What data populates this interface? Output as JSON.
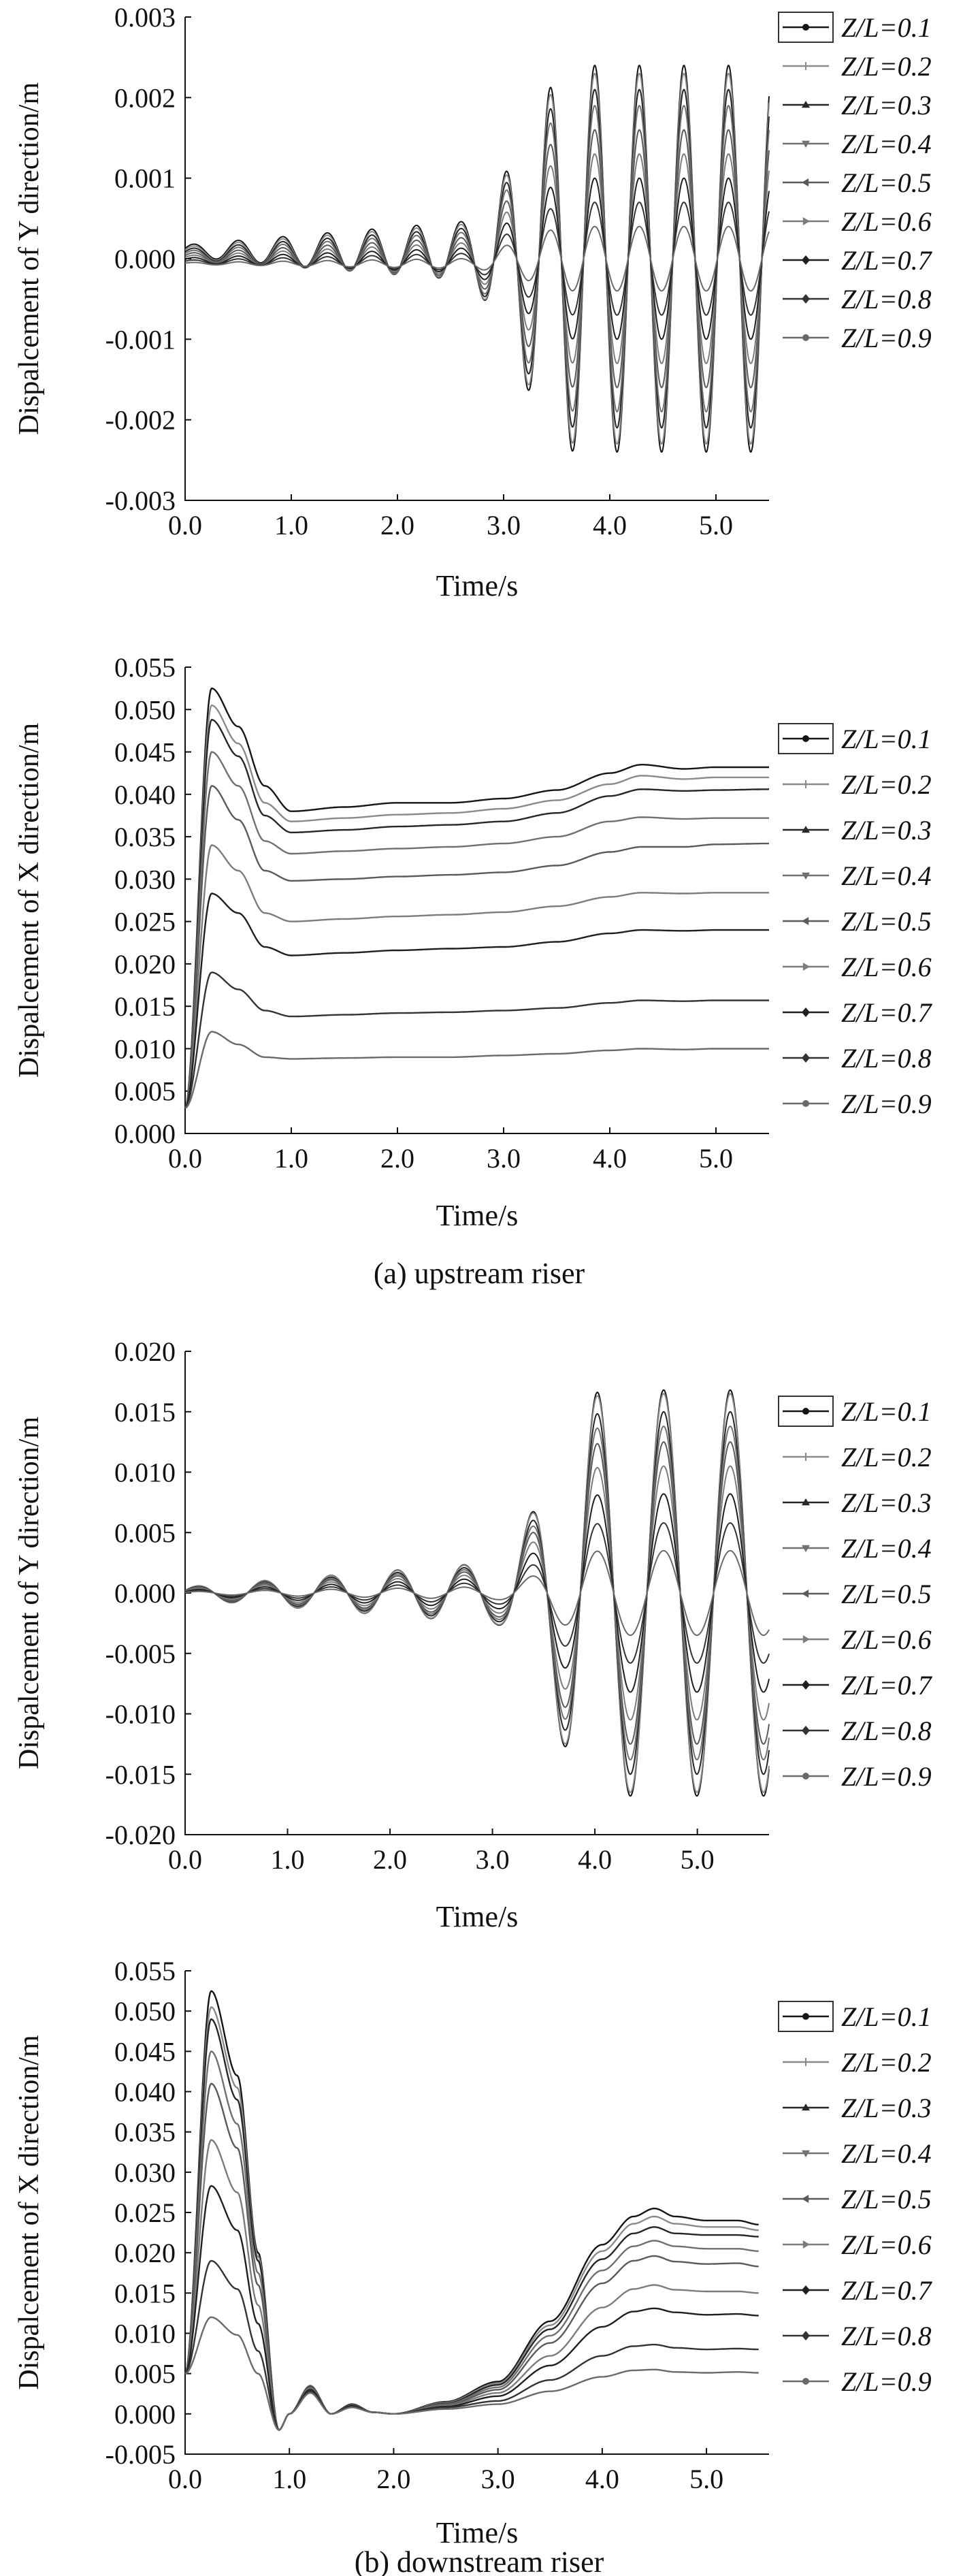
{
  "figure": {
    "caption_a": "(a) upstream riser",
    "caption_b": "(b) downstream riser"
  },
  "legend_labels": [
    "Z/L=0.1",
    "Z/L=0.2",
    "Z/L=0.3",
    "Z/L=0.4",
    "Z/L=0.5",
    "Z/L=0.6",
    "Z/L=0.7",
    "Z/L=0.8",
    "Z/L=0.9"
  ],
  "chart_data": [
    {
      "type": "line",
      "panel": "upstream riser",
      "xlabel": "Time/s",
      "ylabel": "Dispalcement of Y direction/m",
      "xlim": [
        0,
        5.5
      ],
      "ylim": [
        -0.003,
        0.003
      ],
      "xticks": [
        "0.0",
        "1.0",
        "2.0",
        "3.0",
        "4.0",
        "5.0"
      ],
      "yticks": [
        "0.003",
        "0.002",
        "0.001",
        "0.000",
        "-0.001",
        "-0.002",
        "-0.003"
      ],
      "legend_position": "right",
      "signal": "oscillation",
      "period_s": 0.42,
      "onset_s": 2.6,
      "bias": [
        0.0001,
        8e-05,
        6e-05,
        4e-05,
        2e-05,
        0.0,
        -2e-05,
        -4e-05,
        -6e-05
      ],
      "series": [
        {
          "name": "Z/L=0.1",
          "peak_amplitude": 0.0024
        },
        {
          "name": "Z/L=0.2",
          "peak_amplitude": 0.0023
        },
        {
          "name": "Z/L=0.3",
          "peak_amplitude": 0.0021
        },
        {
          "name": "Z/L=0.4",
          "peak_amplitude": 0.0019
        },
        {
          "name": "Z/L=0.5",
          "peak_amplitude": 0.0016
        },
        {
          "name": "Z/L=0.6",
          "peak_amplitude": 0.0013
        },
        {
          "name": "Z/L=0.7",
          "peak_amplitude": 0.001
        },
        {
          "name": "Z/L=0.8",
          "peak_amplitude": 0.0007
        },
        {
          "name": "Z/L=0.9",
          "peak_amplitude": 0.0004
        }
      ]
    },
    {
      "type": "line",
      "panel": "upstream riser",
      "xlabel": "Time/s",
      "ylabel": "Dispalcement of X direction/m",
      "xlim": [
        0,
        5.5
      ],
      "ylim": [
        0,
        0.055
      ],
      "xticks": [
        "0.0",
        "1.0",
        "2.0",
        "3.0",
        "4.0",
        "5.0"
      ],
      "yticks": [
        "0.055",
        "0.050",
        "0.045",
        "0.040",
        "0.035",
        "0.030",
        "0.025",
        "0.020",
        "0.015",
        "0.010",
        "0.005",
        "0.000"
      ],
      "legend_position": "right",
      "signal": "drag",
      "x": [
        0,
        0.25,
        0.5,
        0.75,
        1.0,
        1.5,
        2.0,
        2.5,
        3.0,
        3.5,
        4.0,
        4.3,
        4.7,
        5.0,
        5.5
      ],
      "series": [
        {
          "name": "Z/L=0.1",
          "y": [
            0.003,
            0.0525,
            0.048,
            0.041,
            0.038,
            0.0385,
            0.039,
            0.039,
            0.0395,
            0.0405,
            0.0425,
            0.0435,
            0.043,
            0.0432,
            0.0432
          ]
        },
        {
          "name": "Z/L=0.2",
          "y": [
            0.003,
            0.0505,
            0.046,
            0.039,
            0.0368,
            0.0372,
            0.0376,
            0.0378,
            0.0383,
            0.0393,
            0.0412,
            0.0422,
            0.0418,
            0.042,
            0.042
          ]
        },
        {
          "name": "Z/L=0.3",
          "y": [
            0.003,
            0.0488,
            0.0445,
            0.0375,
            0.0355,
            0.0358,
            0.0362,
            0.0364,
            0.0368,
            0.0378,
            0.0398,
            0.0406,
            0.0404,
            0.0405,
            0.0406
          ]
        },
        {
          "name": "Z/L=0.4",
          "y": [
            0.003,
            0.045,
            0.041,
            0.0345,
            0.033,
            0.0333,
            0.0336,
            0.0338,
            0.0342,
            0.035,
            0.0368,
            0.0373,
            0.0371,
            0.0372,
            0.0372
          ]
        },
        {
          "name": "Z/L=0.5",
          "y": [
            0.003,
            0.041,
            0.037,
            0.031,
            0.0298,
            0.03,
            0.0303,
            0.0305,
            0.0308,
            0.0316,
            0.0332,
            0.0338,
            0.0338,
            0.0341,
            0.0342
          ]
        },
        {
          "name": "Z/L=0.6",
          "y": [
            0.003,
            0.034,
            0.031,
            0.026,
            0.025,
            0.0253,
            0.0256,
            0.0258,
            0.0261,
            0.0268,
            0.0279,
            0.0284,
            0.0283,
            0.0284,
            0.0284
          ]
        },
        {
          "name": "Z/L=0.7",
          "y": [
            0.003,
            0.0283,
            0.026,
            0.022,
            0.021,
            0.0213,
            0.0216,
            0.0218,
            0.022,
            0.0226,
            0.0236,
            0.024,
            0.0239,
            0.024,
            0.024
          ]
        },
        {
          "name": "Z/L=0.8",
          "y": [
            0.003,
            0.019,
            0.017,
            0.0145,
            0.0138,
            0.014,
            0.0142,
            0.0143,
            0.0145,
            0.0148,
            0.0154,
            0.0157,
            0.0156,
            0.0157,
            0.0157
          ]
        },
        {
          "name": "Z/L=0.9",
          "y": [
            0.003,
            0.012,
            0.0105,
            0.009,
            0.0088,
            0.0089,
            0.009,
            0.009,
            0.0092,
            0.0094,
            0.0098,
            0.01,
            0.0099,
            0.01,
            0.01
          ]
        }
      ]
    },
    {
      "type": "line",
      "panel": "downstream riser",
      "xlabel": "Time/s",
      "ylabel": "Dispalcement of Y direction/m",
      "xlim": [
        0,
        5.7
      ],
      "ylim": [
        -0.02,
        0.02
      ],
      "xticks": [
        "0.0",
        "1.0",
        "2.0",
        "3.0",
        "4.0",
        "5.0"
      ],
      "yticks": [
        "0.020",
        "0.015",
        "0.010",
        "0.005",
        "0.000",
        "-0.005",
        "-0.010",
        "-0.015",
        "-0.020"
      ],
      "legend_position": "right",
      "signal": "oscillation",
      "period_s": 0.65,
      "onset_s": 3.0,
      "bias": [
        0,
        0,
        0,
        0,
        0,
        0,
        0,
        0,
        0
      ],
      "series": [
        {
          "name": "Z/L=0.1",
          "peak_amplitude": 0.0168
        },
        {
          "name": "Z/L=0.2",
          "peak_amplitude": 0.0165
        },
        {
          "name": "Z/L=0.3",
          "peak_amplitude": 0.015
        },
        {
          "name": "Z/L=0.4",
          "peak_amplitude": 0.0138
        },
        {
          "name": "Z/L=0.5",
          "peak_amplitude": 0.0125
        },
        {
          "name": "Z/L=0.6",
          "peak_amplitude": 0.0105
        },
        {
          "name": "Z/L=0.7",
          "peak_amplitude": 0.0082
        },
        {
          "name": "Z/L=0.8",
          "peak_amplitude": 0.0058
        },
        {
          "name": "Z/L=0.9",
          "peak_amplitude": 0.0035
        }
      ]
    },
    {
      "type": "line",
      "panel": "downstream riser",
      "xlabel": "Time/s",
      "ylabel": "Dispalcement of X direction/m",
      "xlim": [
        0,
        5.6
      ],
      "ylim": [
        -0.005,
        0.055
      ],
      "xticks": [
        "0.0",
        "1.0",
        "2.0",
        "3.0",
        "4.0",
        "5.0"
      ],
      "yticks": [
        "0.055",
        "0.050",
        "0.045",
        "0.040",
        "0.035",
        "0.030",
        "0.025",
        "0.020",
        "0.015",
        "0.010",
        "0.005",
        "0.000",
        "-0.005"
      ],
      "legend_position": "right",
      "signal": "drag",
      "x": [
        0,
        0.25,
        0.5,
        0.7,
        0.9,
        1.0,
        1.2,
        1.4,
        1.6,
        1.8,
        2.0,
        2.5,
        3.0,
        3.5,
        4.0,
        4.3,
        4.5,
        4.7,
        5.0,
        5.3,
        5.5
      ],
      "series": [
        {
          "name": "Z/L=0.1",
          "y": [
            0.005,
            0.0525,
            0.042,
            0.02,
            -0.002,
            0.0,
            0.0035,
            0.0,
            0.0012,
            0.0002,
            0.0,
            0.0015,
            0.004,
            0.0115,
            0.021,
            0.0245,
            0.0255,
            0.0245,
            0.024,
            0.024,
            0.0235
          ]
        },
        {
          "name": "Z/L=0.2",
          "y": [
            0.005,
            0.0505,
            0.0405,
            0.0195,
            -0.002,
            0.0,
            0.0035,
            0.0,
            0.0012,
            0.0002,
            0.0,
            0.0014,
            0.0038,
            0.011,
            0.0202,
            0.0236,
            0.0245,
            0.0236,
            0.0232,
            0.0232,
            0.0228
          ]
        },
        {
          "name": "Z/L=0.3",
          "y": [
            0.005,
            0.049,
            0.039,
            0.019,
            -0.002,
            0.0,
            0.0034,
            0.0,
            0.0012,
            0.0002,
            0.0,
            0.0013,
            0.0036,
            0.0105,
            0.0192,
            0.0224,
            0.0232,
            0.0224,
            0.0222,
            0.0222,
            0.022
          ]
        },
        {
          "name": "Z/L=0.4",
          "y": [
            0.005,
            0.045,
            0.036,
            0.0175,
            -0.002,
            0.0,
            0.0033,
            0.0,
            0.0011,
            0.0002,
            0.0,
            0.0012,
            0.0033,
            0.0097,
            0.0178,
            0.0208,
            0.0215,
            0.0208,
            0.0205,
            0.0205,
            0.0202
          ]
        },
        {
          "name": "Z/L=0.5",
          "y": [
            0.005,
            0.041,
            0.033,
            0.016,
            -0.002,
            0.0,
            0.0032,
            0.0,
            0.0011,
            0.0002,
            0.0,
            0.0011,
            0.003,
            0.0088,
            0.0162,
            0.019,
            0.0196,
            0.0189,
            0.0186,
            0.0187,
            0.0183
          ]
        },
        {
          "name": "Z/L=0.6",
          "y": [
            0.005,
            0.034,
            0.0275,
            0.0135,
            -0.002,
            0.0,
            0.0031,
            0.0,
            0.001,
            0.0002,
            0.0,
            0.001,
            0.0026,
            0.0072,
            0.0132,
            0.0155,
            0.016,
            0.0154,
            0.0152,
            0.0152,
            0.015
          ]
        },
        {
          "name": "Z/L=0.7",
          "y": [
            0.005,
            0.0283,
            0.0228,
            0.0112,
            -0.002,
            0.0,
            0.003,
            0.0,
            0.001,
            0.0002,
            0.0,
            0.0009,
            0.0022,
            0.006,
            0.0108,
            0.0127,
            0.0131,
            0.0126,
            0.0123,
            0.0124,
            0.0122
          ]
        },
        {
          "name": "Z/L=0.8",
          "y": [
            0.005,
            0.019,
            0.0155,
            0.0078,
            -0.002,
            0.0,
            0.0028,
            0.0,
            0.0009,
            0.0002,
            0.0,
            0.0008,
            0.0016,
            0.0042,
            0.0072,
            0.0084,
            0.0086,
            0.0082,
            0.008,
            0.0081,
            0.008
          ]
        },
        {
          "name": "Z/L=0.9",
          "y": [
            0.005,
            0.012,
            0.0098,
            0.005,
            -0.002,
            0.0,
            0.0026,
            0.0,
            0.0008,
            0.0002,
            0.0,
            0.0006,
            0.0012,
            0.0028,
            0.0046,
            0.0054,
            0.0055,
            0.0052,
            0.0051,
            0.0052,
            0.0051
          ]
        }
      ]
    }
  ]
}
